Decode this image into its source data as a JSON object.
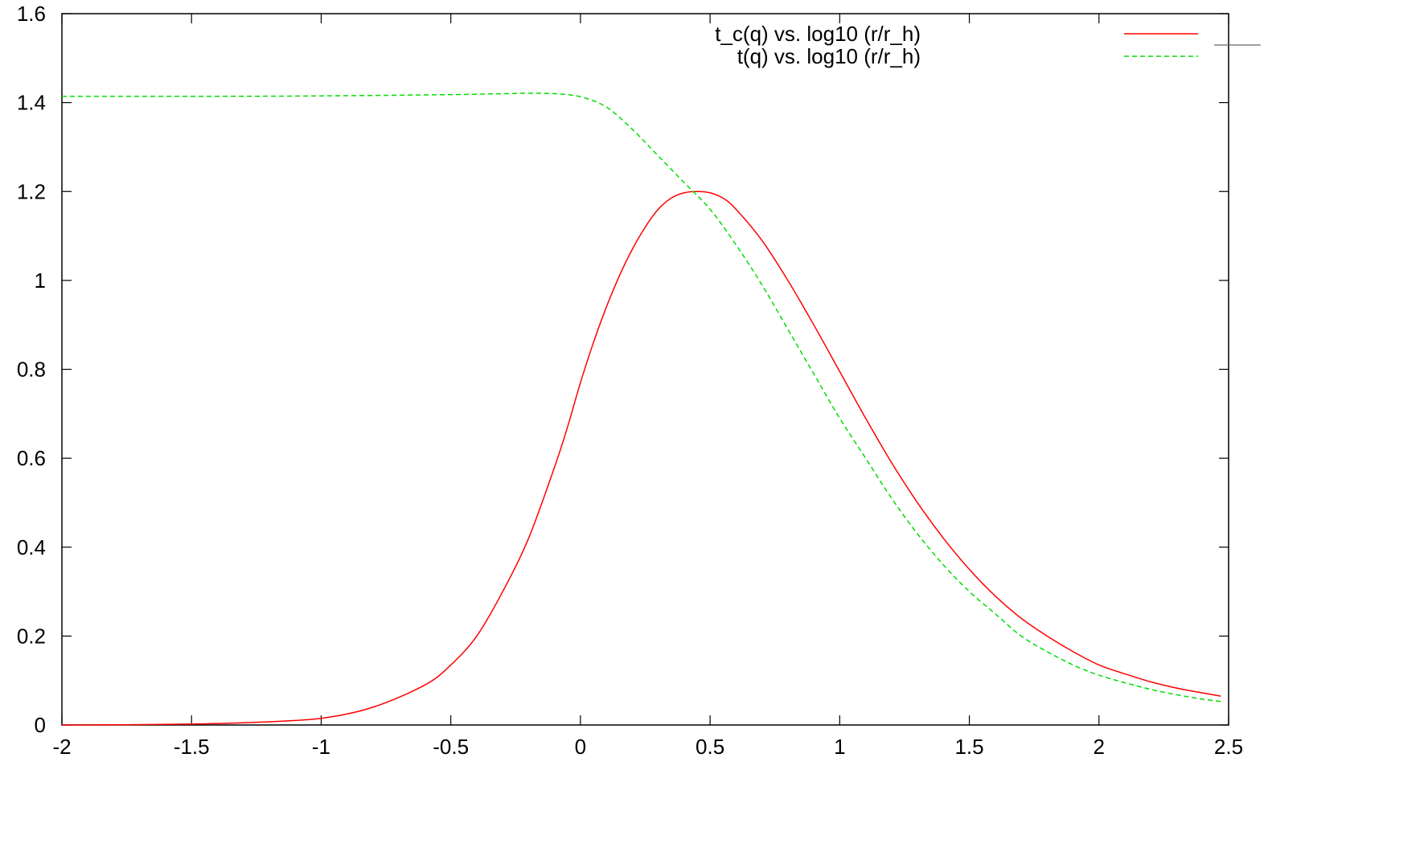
{
  "chart_data": {
    "type": "line",
    "title": "",
    "xlabel": "",
    "ylabel": "",
    "xlim": [
      -2,
      2.5
    ],
    "ylim": [
      0,
      1.6
    ],
    "grid": false,
    "legend_position": "top-right",
    "x_ticks": [
      {
        "value": -2,
        "label": "-2"
      },
      {
        "value": -1.5,
        "label": "-1.5"
      },
      {
        "value": -1,
        "label": "-1"
      },
      {
        "value": -0.5,
        "label": "-0.5"
      },
      {
        "value": 0,
        "label": "0"
      },
      {
        "value": 0.5,
        "label": "0.5"
      },
      {
        "value": 1,
        "label": "1"
      },
      {
        "value": 1.5,
        "label": "1.5"
      },
      {
        "value": 2,
        "label": "2"
      },
      {
        "value": 2.5,
        "label": "2.5"
      }
    ],
    "y_ticks": [
      {
        "value": 0,
        "label": "0"
      },
      {
        "value": 0.2,
        "label": "0.2"
      },
      {
        "value": 0.4,
        "label": "0.4"
      },
      {
        "value": 0.6,
        "label": "0.6"
      },
      {
        "value": 0.8,
        "label": "0.8"
      },
      {
        "value": 1,
        "label": "1"
      },
      {
        "value": 1.2,
        "label": "1.2"
      },
      {
        "value": 1.4,
        "label": "1.4"
      },
      {
        "value": 1.6,
        "label": "1.6"
      }
    ],
    "series": [
      {
        "name": "t_c(q) vs. log10 (r/r_h)",
        "color": "#ff0000",
        "dash": "solid",
        "x": [
          -2.0,
          -1.75,
          -1.5,
          -1.25,
          -1.0,
          -0.8,
          -0.6,
          -0.5,
          -0.4,
          -0.3,
          -0.2,
          -0.1,
          -0.05,
          0.0,
          0.05,
          0.1,
          0.15,
          0.2,
          0.25,
          0.3,
          0.35,
          0.4,
          0.45,
          0.5,
          0.55,
          0.6,
          0.7,
          0.8,
          0.9,
          1.0,
          1.1,
          1.2,
          1.3,
          1.4,
          1.5,
          1.6,
          1.7,
          1.8,
          1.9,
          2.0,
          2.1,
          2.2,
          2.3,
          2.4,
          2.47
        ],
        "y": [
          0.0,
          0.0005,
          0.002,
          0.006,
          0.015,
          0.04,
          0.09,
          0.135,
          0.2,
          0.3,
          0.42,
          0.58,
          0.67,
          0.77,
          0.86,
          0.94,
          1.01,
          1.07,
          1.12,
          1.16,
          1.185,
          1.197,
          1.2,
          1.197,
          1.185,
          1.16,
          1.09,
          1.0,
          0.9,
          0.795,
          0.69,
          0.59,
          0.5,
          0.42,
          0.35,
          0.29,
          0.24,
          0.2,
          0.165,
          0.135,
          0.115,
          0.097,
          0.083,
          0.072,
          0.065
        ]
      },
      {
        "name": "t(q) vs. log10 (r/r_h)",
        "color": "#00dd00",
        "dash": "dashed",
        "x": [
          -2.0,
          -1.5,
          -1.0,
          -0.5,
          -0.3,
          -0.2,
          -0.1,
          0.0,
          0.1,
          0.2,
          0.3,
          0.4,
          0.5,
          0.6,
          0.7,
          0.8,
          0.9,
          1.0,
          1.1,
          1.2,
          1.3,
          1.4,
          1.5,
          1.6,
          1.7,
          1.8,
          1.9,
          2.0,
          2.1,
          2.2,
          2.3,
          2.4,
          2.47
        ],
        "y": [
          1.414,
          1.414,
          1.415,
          1.418,
          1.42,
          1.421,
          1.42,
          1.413,
          1.39,
          1.34,
          1.28,
          1.22,
          1.16,
          1.08,
          0.99,
          0.89,
          0.79,
          0.69,
          0.6,
          0.51,
          0.43,
          0.36,
          0.3,
          0.25,
          0.2,
          0.165,
          0.135,
          0.112,
          0.095,
          0.08,
          0.068,
          0.058,
          0.053
        ]
      }
    ]
  }
}
